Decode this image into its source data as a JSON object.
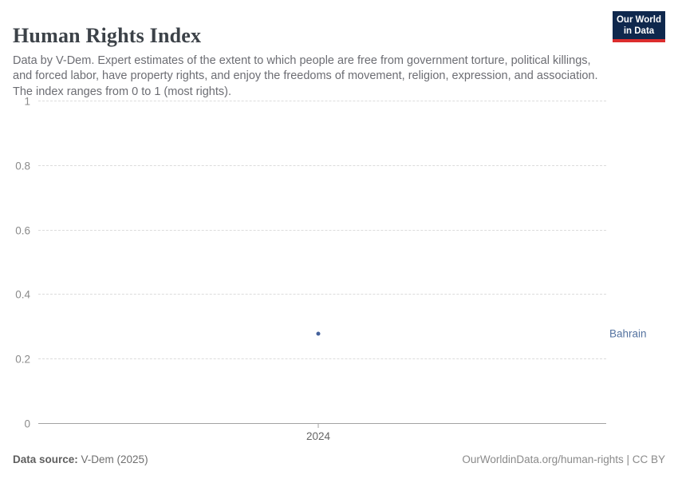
{
  "header": {
    "title": "Human Rights Index",
    "logo": {
      "line1": "Our World",
      "line2": "in Data"
    }
  },
  "subtitle": "Data by V-Dem. Expert estimates of the extent to which people are free from government torture, political killings, and forced labor, have property rights, and enjoy the freedoms of movement, religion, expression, and association. The index ranges from 0 to 1 (most rights).",
  "chart_data": {
    "type": "scatter",
    "title": "Human Rights Index",
    "series": [
      {
        "name": "Bahrain",
        "color": "#44619b",
        "points": [
          {
            "x": 2024,
            "y": 0.28
          }
        ]
      }
    ],
    "xticks": [
      2024
    ],
    "yticks": [
      0,
      0.2,
      0.4,
      0.6,
      0.8,
      1
    ],
    "ylim": [
      0,
      1
    ],
    "xlabel": "",
    "ylabel": "",
    "grid": "horizontal-dashed",
    "legend_position": "entity-label-right"
  },
  "colors": {
    "accent_point": "#44619b",
    "entity_label": "#5573a0",
    "logo_navy": "#0f284d",
    "logo_red": "#dc2d2d"
  },
  "footer": {
    "source_label": "Data source:",
    "source_value": " V-Dem (2025)",
    "credit": "OurWorldinData.org/human-rights | CC BY"
  }
}
